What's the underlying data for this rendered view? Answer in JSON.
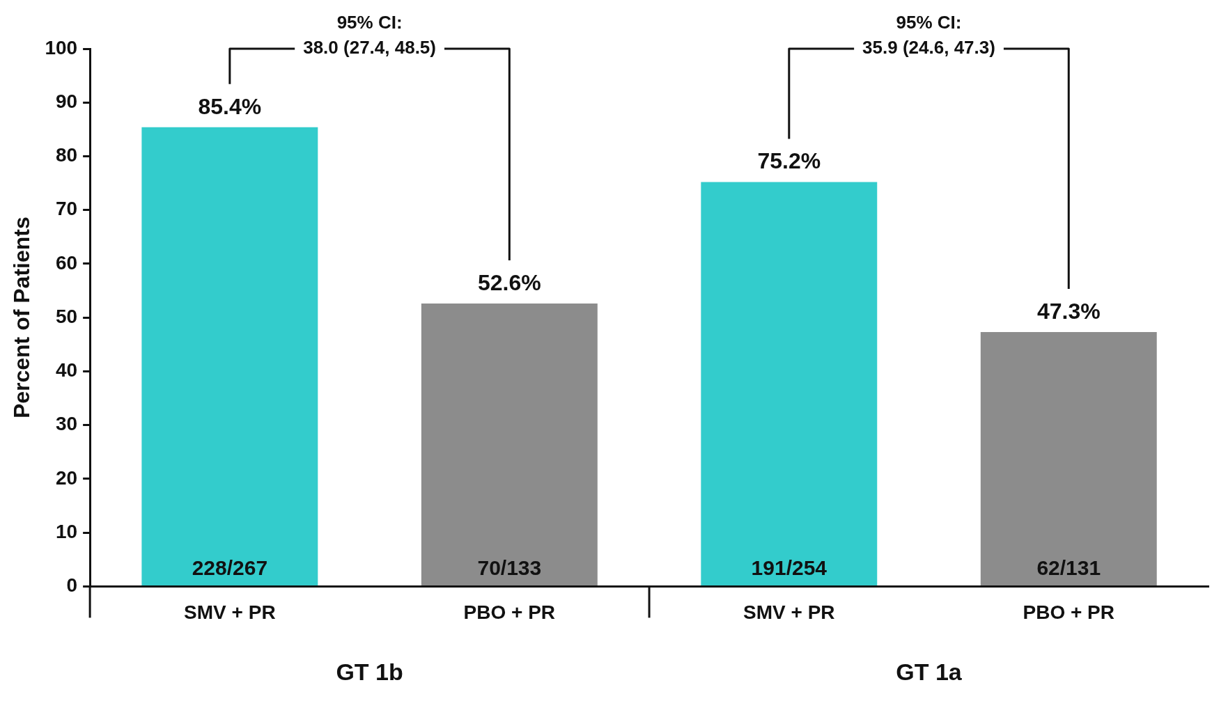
{
  "chart_data": {
    "type": "bar",
    "ylabel": "Percent of Patients",
    "categories": [
      "SMV + PR",
      "PBO + PR",
      "SMV + PR",
      "PBO + PR"
    ],
    "values": [
      85.4,
      52.6,
      75.2,
      47.3
    ],
    "colors": [
      "#33cccc",
      "#8c8c8c",
      "#33cccc",
      "#8c8c8c"
    ],
    "value_labels": [
      "85.4%",
      "52.6%",
      "75.2%",
      "47.3%"
    ],
    "ylim": [
      0,
      100
    ],
    "yticks": [
      0,
      10,
      20,
      30,
      40,
      50,
      60,
      70,
      80,
      90,
      100
    ],
    "grid": false,
    "legend": false,
    "annotations": [
      "228/267",
      "70/133",
      "191/254",
      "62/131",
      "95% CI:\n38.0 (27.4, 48.5)",
      "95% CI:\n35.9 (24.6, 47.3)",
      "GT 1b",
      "GT 1a"
    ]
  }
}
